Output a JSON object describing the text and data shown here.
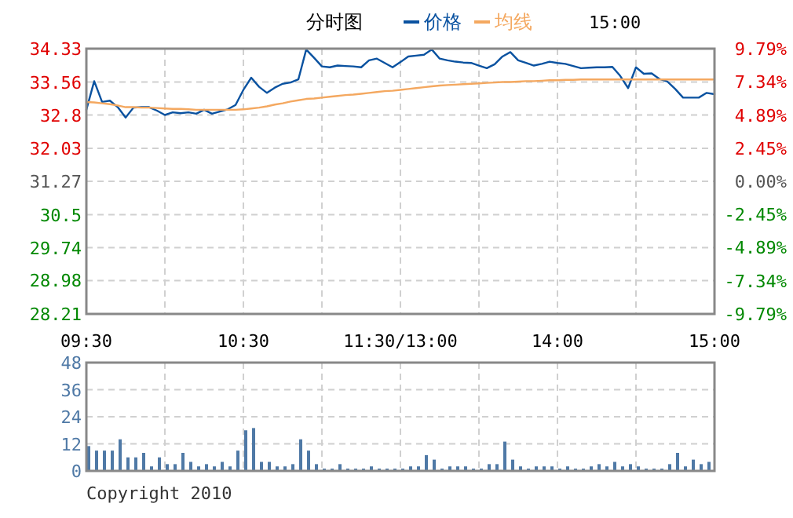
{
  "chart_data": [
    {
      "type": "line",
      "title": "分时图",
      "legend": "top",
      "grid": true,
      "annotations": [
        "15:00"
      ],
      "categories": [
        "09:30",
        null,
        null,
        null,
        null,
        null,
        null,
        null,
        null,
        null,
        null,
        null,
        null,
        null,
        null,
        null,
        null,
        null,
        null,
        null,
        "10:30",
        null,
        null,
        null,
        null,
        null,
        null,
        null,
        null,
        null,
        null,
        null,
        null,
        null,
        null,
        null,
        null,
        null,
        null,
        null,
        "11:30/13:00",
        null,
        null,
        null,
        null,
        null,
        null,
        null,
        null,
        null,
        null,
        null,
        null,
        null,
        null,
        null,
        null,
        null,
        null,
        null,
        "14:00",
        null,
        null,
        null,
        null,
        null,
        null,
        null,
        null,
        null,
        null,
        null,
        null,
        null,
        null,
        null,
        null,
        null,
        null,
        null,
        "15:00"
      ],
      "ylim": [
        28.21,
        34.33
      ],
      "yticks": [
        28.21,
        28.98,
        29.74,
        30.5,
        31.27,
        32.03,
        32.8,
        33.56,
        34.33
      ],
      "y2lim": [
        -9.79,
        9.79
      ],
      "y2ticks": [
        {
          "value": -9.79,
          "label": "-9.79%"
        },
        {
          "value": -7.34,
          "label": "-7.34%"
        },
        {
          "value": -4.89,
          "label": "-4.89%"
        },
        {
          "value": -2.45,
          "label": "-2.45%"
        },
        {
          "value": 0,
          "label": "0.00%"
        },
        {
          "value": 2.45,
          "label": "2.45%"
        },
        {
          "value": 4.89,
          "label": "4.89%"
        },
        {
          "value": 7.34,
          "label": "7.34%"
        },
        {
          "value": 9.79,
          "label": "9.79%"
        }
      ],
      "series": [
        {
          "name": "价格",
          "color": "#0a52a0",
          "values": [
            32.92,
            33.58,
            33.1,
            33.13,
            32.98,
            32.74,
            32.97,
            32.98,
            32.98,
            32.9,
            32.8,
            32.86,
            32.84,
            32.86,
            32.83,
            32.92,
            32.83,
            32.88,
            32.93,
            33.03,
            33.38,
            33.66,
            33.45,
            33.31,
            33.43,
            33.52,
            33.55,
            33.62,
            34.31,
            34.12,
            33.92,
            33.9,
            33.94,
            33.93,
            33.92,
            33.9,
            34.06,
            34.1,
            34.0,
            33.9,
            34.02,
            34.15,
            34.17,
            34.19,
            34.31,
            34.1,
            34.06,
            34.03,
            34.01,
            34.0,
            33.94,
            33.88,
            33.97,
            34.15,
            34.25,
            34.06,
            34.0,
            33.94,
            33.98,
            34.03,
            34.0,
            33.98,
            33.93,
            33.88,
            33.89,
            33.9,
            33.9,
            33.91,
            33.7,
            33.42,
            33.9,
            33.75,
            33.76,
            33.63,
            33.57,
            33.4,
            33.2,
            33.2,
            33.2,
            33.31,
            33.28
          ]
        },
        {
          "name": "均线",
          "color": "#f4a860",
          "values": [
            33.1,
            33.09,
            33.07,
            33.05,
            33.02,
            32.98,
            32.98,
            32.97,
            32.97,
            32.96,
            32.95,
            32.94,
            32.94,
            32.93,
            32.92,
            32.92,
            32.92,
            32.92,
            32.92,
            32.92,
            32.93,
            32.95,
            32.97,
            33.0,
            33.04,
            33.07,
            33.11,
            33.14,
            33.17,
            33.18,
            33.2,
            33.22,
            33.24,
            33.26,
            33.27,
            33.29,
            33.31,
            33.33,
            33.35,
            33.36,
            33.38,
            33.4,
            33.42,
            33.44,
            33.46,
            33.48,
            33.49,
            33.5,
            33.51,
            33.52,
            33.53,
            33.54,
            33.55,
            33.56,
            33.56,
            33.57,
            33.58,
            33.58,
            33.59,
            33.6,
            33.6,
            33.61,
            33.61,
            33.62,
            33.62,
            33.62,
            33.62,
            33.62,
            33.62,
            33.62,
            33.62,
            33.62,
            33.62,
            33.62,
            33.62,
            33.62,
            33.62,
            33.62,
            33.62,
            33.62,
            33.62
          ]
        }
      ]
    },
    {
      "type": "bar",
      "grid": true,
      "tick_labels": "y",
      "annotations": [
        "Copyright 2010"
      ],
      "color": "#4f79a6",
      "categories": [
        null,
        null,
        null,
        null,
        null,
        null,
        null,
        null,
        null,
        null,
        null,
        null,
        null,
        null,
        null,
        null,
        null,
        null,
        null,
        null,
        null,
        null,
        null,
        null,
        null,
        null,
        null,
        null,
        null,
        null,
        null,
        null,
        null,
        null,
        null,
        null,
        null,
        null,
        null,
        null,
        null,
        null,
        null,
        null,
        null,
        null,
        null,
        null,
        null,
        null,
        null,
        null,
        null,
        null,
        null,
        null,
        null,
        null,
        null,
        null,
        null,
        null,
        null,
        null,
        null,
        null,
        null,
        null,
        null,
        null,
        null,
        null,
        null,
        null,
        null,
        null,
        null,
        null,
        null,
        null,
        null
      ],
      "ylim": [
        0,
        48
      ],
      "yticks": [
        0,
        12,
        24,
        36,
        48
      ],
      "values": [
        11,
        9,
        9,
        9,
        14,
        6,
        6,
        8,
        2,
        6,
        3,
        3,
        8,
        4,
        2,
        3,
        2,
        4,
        2,
        9,
        18,
        19,
        4,
        4,
        2,
        2,
        3,
        14,
        9,
        3,
        1,
        1,
        3,
        1,
        1,
        1,
        2,
        1,
        1,
        1,
        1,
        2,
        2,
        7,
        5,
        1,
        2,
        2,
        2,
        1,
        1,
        3,
        3,
        13,
        5,
        2,
        1,
        2,
        2,
        2,
        1,
        2,
        1,
        1,
        2,
        3,
        2,
        4,
        2,
        3,
        2,
        1,
        1,
        1,
        3,
        8,
        2,
        5,
        3,
        4,
        null
      ]
    }
  ]
}
